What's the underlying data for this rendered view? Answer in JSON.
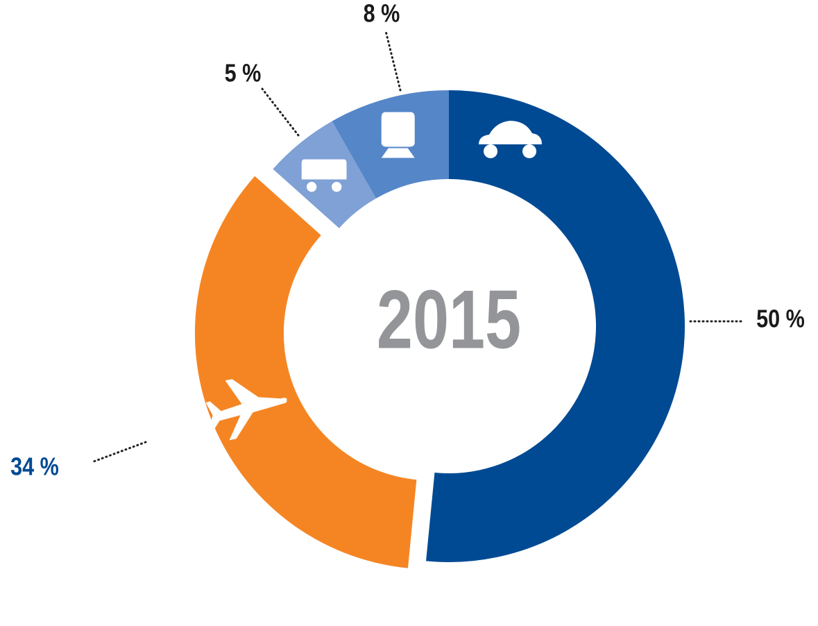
{
  "chart_data": {
    "type": "donut",
    "center_label": "2015",
    "values": [
      50,
      34,
      5,
      8
    ],
    "value_labels": [
      "50 %",
      "34 %",
      "5 %",
      "8 %"
    ],
    "colors": [
      "#004a93",
      "#f58523",
      "#7fa1d5",
      "#5586c8"
    ],
    "label_colors": [
      "#1a1a1a",
      "#004a93",
      "#1a1a1a",
      "#1a1a1a"
    ],
    "exploded": [
      false,
      true,
      false,
      false
    ]
  }
}
